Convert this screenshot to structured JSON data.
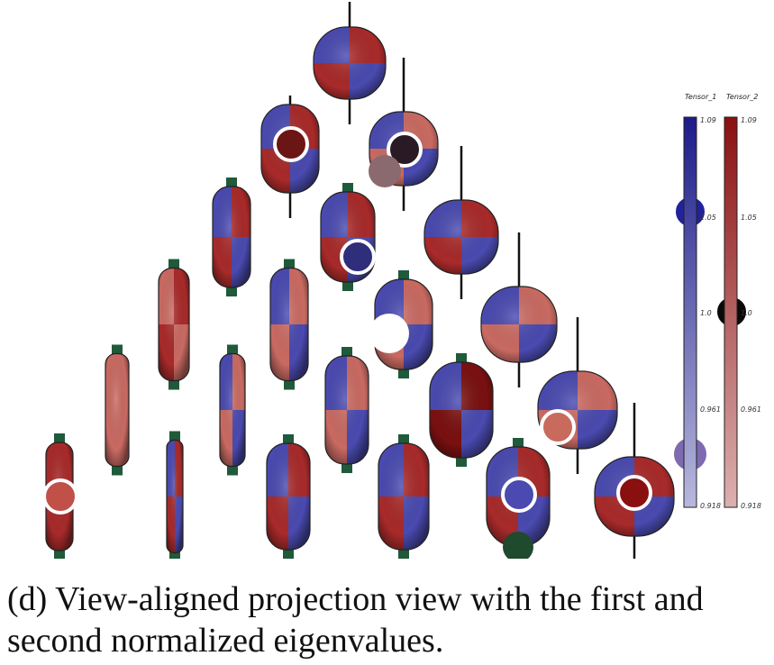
{
  "figure": {
    "caption_line1": "(d) View-aligned projection view with the first and",
    "caption_line2": "second normalized eigenvalues."
  },
  "colorbars": [
    {
      "title": "Tensor_1",
      "color_top": "#1c1c8a",
      "color_bottom": "#b8b8dd",
      "ticks": [
        "1.09",
        "1.05",
        "1.0",
        "0.961",
        "0.918"
      ]
    },
    {
      "title": "Tensor_2",
      "color_top": "#8b1010",
      "color_bottom": "#ddb0b0",
      "ticks": [
        "1.09",
        "1.05",
        "1.0",
        "0.961",
        "0.918"
      ]
    }
  ],
  "colors": {
    "blue": "#4a4ab0",
    "red": "#a82a2a",
    "light_red": "#c96a62",
    "dark_red": "#7a1010",
    "stem": "#1f5a3a",
    "pole": "#111111"
  }
}
